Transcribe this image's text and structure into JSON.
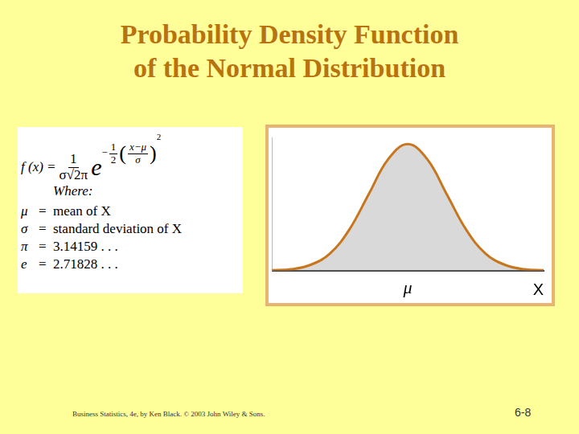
{
  "title": [
    "Probability Density Function",
    "of the Normal Distribution"
  ],
  "formula": {
    "lhs": "f (x) =",
    "coef_num": "1",
    "coef_den": "σ√2π",
    "base": "e",
    "exp_sign": "−",
    "exp_num": "1",
    "exp_den": "2",
    "open": "(",
    "inner_num": "x−μ",
    "inner_den": "σ",
    "close": ")",
    "power": "2"
  },
  "where": "Where:",
  "equals": "=",
  "definitions": [
    {
      "symbol": "μ",
      "meaning": "mean of X"
    },
    {
      "symbol": "σ",
      "meaning": "standard deviation of X"
    },
    {
      "symbol": "π",
      "meaning": "3.14159 . . ."
    },
    {
      "symbol": "e",
      "meaning": "2.71828 . . ."
    }
  ],
  "footer": "Business Statistics, 4e, by Ken Black. © 2003 John Wiley & Sons.",
  "page": "6-8",
  "chart_data": {
    "type": "area",
    "x": [
      -3.5,
      -3,
      -2.5,
      -2,
      -1.5,
      -1,
      -0.5,
      0,
      0.5,
      1,
      1.5,
      2,
      2.5,
      3,
      3.5
    ],
    "values": [
      0.001,
      0.004,
      0.018,
      0.054,
      0.13,
      0.242,
      0.352,
      0.399,
      0.352,
      0.242,
      0.13,
      0.054,
      0.018,
      0.004,
      0.001
    ],
    "color": "#c8761e",
    "xlim": [
      -3.5,
      3.5
    ],
    "ylim": [
      0,
      0.42
    ],
    "xticks": [
      {
        "value": 0,
        "label": "μ"
      }
    ],
    "x_label": "X",
    "tick_labels": "x",
    "grid": false
  }
}
